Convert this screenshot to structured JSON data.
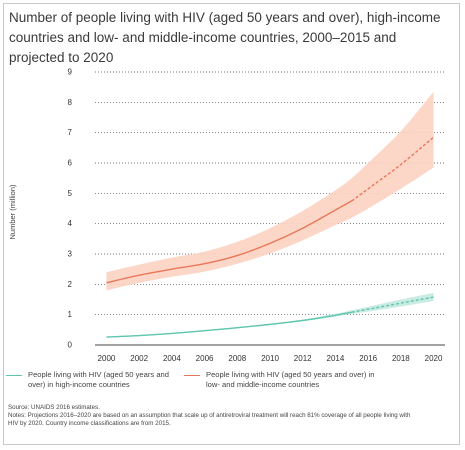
{
  "title": "Number of people living with HIV (aged 50 years and over), high-income countries and low- and middle-income countries, 2000–2015 and projected to 2020",
  "colors": {
    "orange": "#e8785a",
    "orange_band": "#fcd1c0",
    "teal": "#5ec6b0",
    "teal_band": "#bfe8dd",
    "grid": "#444444"
  },
  "chart_data": {
    "type": "line",
    "ylabel": "Number (million)",
    "xlabel": "",
    "x_ticks": [
      2000,
      2002,
      2004,
      2006,
      2008,
      2010,
      2012,
      2014,
      2016,
      2018,
      2020
    ],
    "y_ticks": [
      0,
      1,
      2,
      3,
      4,
      5,
      6,
      7,
      8,
      9
    ],
    "xlim": [
      1999.3,
      2020.7
    ],
    "ylim": [
      0,
      9
    ],
    "grid": "horizontal-dotted",
    "legend_position": "bottom",
    "projection_start": 2015,
    "series": [
      {
        "name": "People living with HIV (aged 50 years and over) in high-income countries",
        "color": "#5ec6b0",
        "x": [
          2000,
          2002,
          2004,
          2006,
          2008,
          2010,
          2012,
          2014,
          2015,
          2016,
          2018,
          2020
        ],
        "values": [
          0.26,
          0.31,
          0.38,
          0.47,
          0.57,
          0.68,
          0.81,
          0.98,
          1.08,
          1.18,
          1.38,
          1.58
        ],
        "lower": [
          0.24,
          0.29,
          0.36,
          0.45,
          0.55,
          0.66,
          0.78,
          0.94,
          1.02,
          1.1,
          1.27,
          1.45
        ],
        "upper": [
          0.28,
          0.33,
          0.4,
          0.49,
          0.59,
          0.7,
          0.84,
          1.03,
          1.14,
          1.26,
          1.5,
          1.72
        ]
      },
      {
        "name": "People living with HIV (aged 50 years and over) in low- and middle-income countries",
        "color": "#e8785a",
        "x": [
          2000,
          2002,
          2004,
          2006,
          2008,
          2010,
          2012,
          2014,
          2015,
          2016,
          2018,
          2020
        ],
        "values": [
          2.05,
          2.3,
          2.5,
          2.68,
          2.95,
          3.35,
          3.85,
          4.45,
          4.75,
          5.15,
          5.95,
          6.85
        ],
        "lower": [
          1.8,
          2.05,
          2.25,
          2.42,
          2.68,
          3.02,
          3.45,
          3.95,
          4.2,
          4.5,
          5.15,
          5.85
        ],
        "upper": [
          2.4,
          2.65,
          2.88,
          3.08,
          3.4,
          3.85,
          4.42,
          5.1,
          5.5,
          6.0,
          7.05,
          8.35
        ]
      }
    ]
  },
  "notes": {
    "source": "Source: UNAIDS 2016 estimates.",
    "notes_line1": "Notes: Projections 2016–2020 are based on an assumption that scale up of antiretroviral treatment will reach 81% coverage of all people living with",
    "notes_line2": "HIV by 2020. Country income classifications are from 2015."
  }
}
